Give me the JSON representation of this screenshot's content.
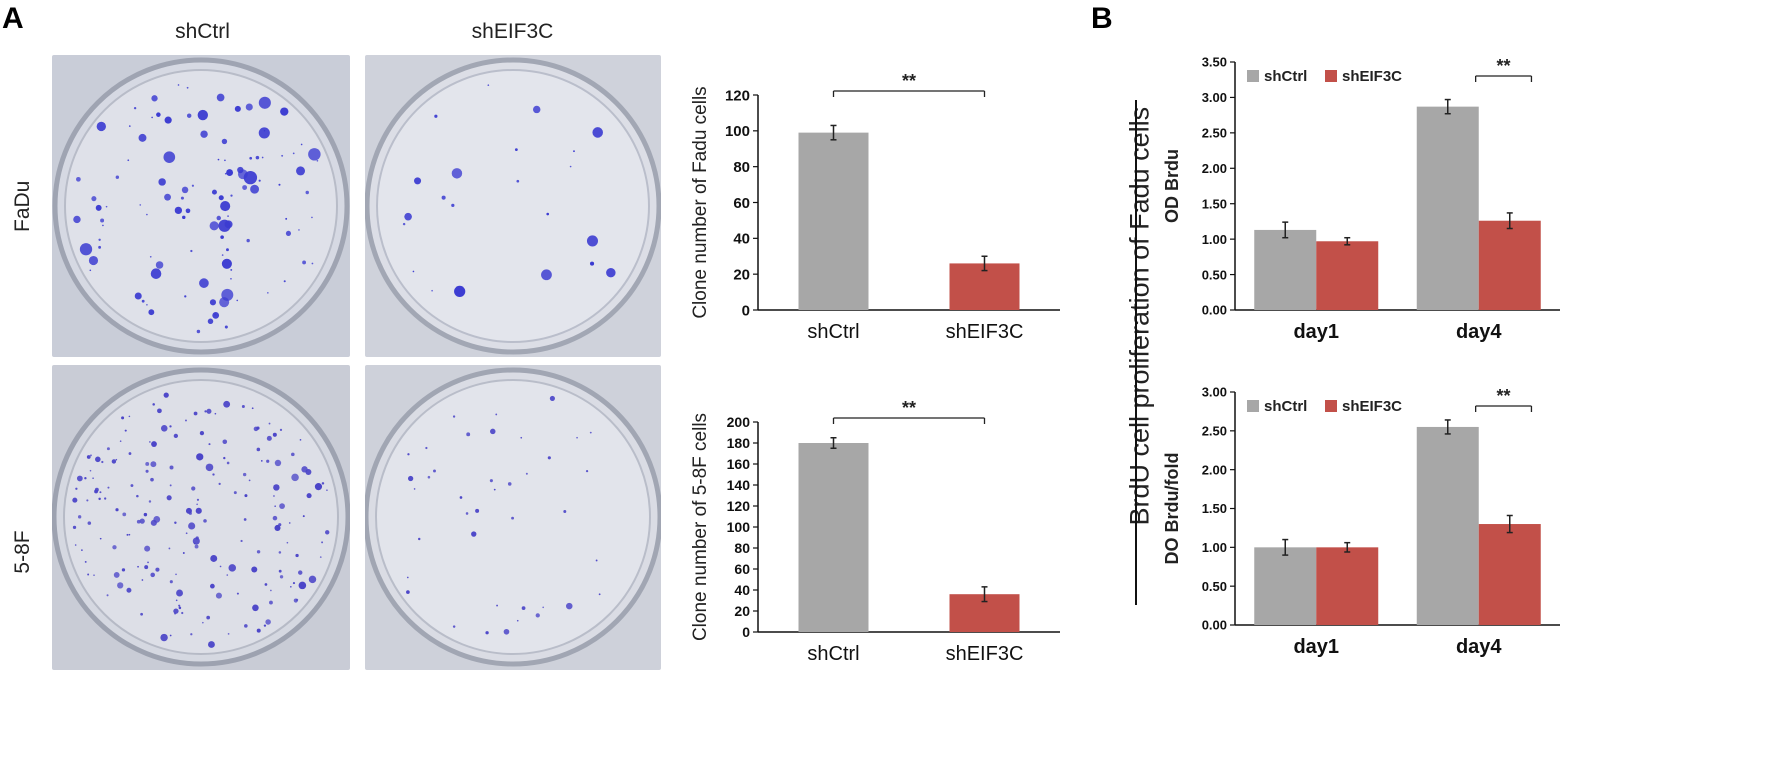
{
  "panel_a": {
    "letter": "A",
    "columns": [
      "shCtrl",
      "shEIF3C"
    ],
    "rows": [
      "FaDu",
      "5-8F"
    ]
  },
  "panel_b": {
    "letter": "B",
    "side_label": "BrdU cell proliferation of Fadu cells"
  },
  "colors": {
    "ctrl": "#a7a7a7",
    "eif": "#c25049",
    "dot": "#3b3bd1"
  },
  "chart_data": [
    {
      "id": "fadu_clone",
      "type": "bar",
      "categories": [
        "shCtrl",
        "shEIF3C"
      ],
      "values": [
        99,
        26
      ],
      "errors": [
        4,
        4
      ],
      "ylabel": "Clone number of Fadu cells",
      "ylim": [
        0,
        120
      ],
      "yticks": [
        "0",
        "20",
        "40",
        "60",
        "80",
        "100",
        "120"
      ],
      "significance": "**"
    },
    {
      "id": "f58_clone",
      "type": "bar",
      "categories": [
        "shCtrl",
        "shEIF3C"
      ],
      "values": [
        180,
        36
      ],
      "errors": [
        5,
        7
      ],
      "ylabel": "Clone number of 5-8F cells",
      "ylim": [
        0,
        200
      ],
      "yticks": [
        "0",
        "20",
        "40",
        "60",
        "80",
        "100",
        "120",
        "140",
        "160",
        "180",
        "200"
      ],
      "significance": "**"
    },
    {
      "id": "od_brdu",
      "type": "bar",
      "categories": [
        "day1",
        "day4"
      ],
      "series": [
        {
          "name": "shCtrl",
          "values": [
            1.13,
            2.87
          ],
          "errors": [
            0.11,
            0.1
          ]
        },
        {
          "name": "shEIF3C",
          "values": [
            0.97,
            1.26
          ],
          "errors": [
            0.05,
            0.11
          ]
        }
      ],
      "ylabel": "OD Brdu",
      "ylim": [
        0,
        3.5
      ],
      "yticks": [
        "0.00",
        "0.50",
        "1.00",
        "1.50",
        "2.00",
        "2.50",
        "3.00",
        "3.50"
      ],
      "legend": "top-left",
      "significance": "**"
    },
    {
      "id": "do_brdu_fold",
      "type": "bar",
      "categories": [
        "day1",
        "day4"
      ],
      "series": [
        {
          "name": "shCtrl",
          "values": [
            1.0,
            2.55
          ],
          "errors": [
            0.1,
            0.09
          ]
        },
        {
          "name": "shEIF3C",
          "values": [
            1.0,
            1.3
          ],
          "errors": [
            0.06,
            0.11
          ]
        }
      ],
      "ylabel": "DO Brdu/fold",
      "ylim": [
        0,
        3.0
      ],
      "yticks": [
        "0.00",
        "0.50",
        "1.00",
        "1.50",
        "2.00",
        "2.50",
        "3.00"
      ],
      "legend": "top-left",
      "significance": "**"
    }
  ]
}
